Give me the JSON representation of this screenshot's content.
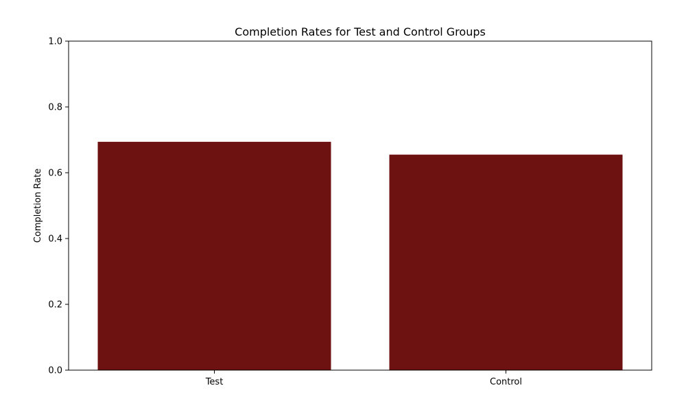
{
  "chart_data": {
    "type": "bar",
    "title": "Completion Rates for Test and Control Groups",
    "xlabel": "",
    "ylabel": "Completion Rate",
    "categories": [
      "Test",
      "Control"
    ],
    "values": [
      0.694,
      0.655
    ],
    "ylim": [
      0,
      1.0
    ],
    "yticks": [
      "0.0",
      "0.2",
      "0.4",
      "0.6",
      "0.8",
      "1.0"
    ],
    "ytick_values": [
      0,
      0.2,
      0.4,
      0.6,
      0.8,
      1.0
    ],
    "bar_color": "#6e1111",
    "grid": false,
    "legend": "none"
  }
}
